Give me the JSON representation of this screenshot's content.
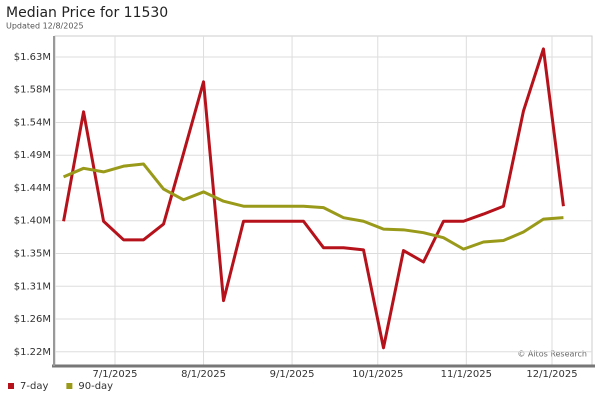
{
  "chart_data": {
    "type": "line",
    "title": "Median Price for 11530",
    "subtitle": "Updated 12/8/2025",
    "annotation": "© Altos Research",
    "x": [
      "2025-06-13",
      "2025-06-20",
      "2025-06-27",
      "2025-07-04",
      "2025-07-11",
      "2025-07-18",
      "2025-07-25",
      "2025-08-01",
      "2025-08-08",
      "2025-08-15",
      "2025-08-22",
      "2025-08-29",
      "2025-09-05",
      "2025-09-12",
      "2025-09-19",
      "2025-09-26",
      "2025-10-03",
      "2025-10-10",
      "2025-10-17",
      "2025-10-24",
      "2025-10-31",
      "2025-11-07",
      "2025-11-14",
      "2025-11-21",
      "2025-11-28",
      "2025-12-05"
    ],
    "series": [
      {
        "name": "7-day",
        "color": "#b5121b",
        "values": [
          1.398,
          1.551,
          1.398,
          1.372,
          1.372,
          1.394,
          1.493,
          1.593,
          1.287,
          1.398,
          1.398,
          1.398,
          1.398,
          1.361,
          1.361,
          1.358,
          1.221,
          1.357,
          1.341,
          1.398,
          1.398,
          1.408,
          1.419,
          1.552,
          1.639,
          1.419
        ]
      },
      {
        "name": "90-day",
        "color": "#9a9a1a",
        "values": [
          1.46,
          1.472,
          1.467,
          1.475,
          1.478,
          1.443,
          1.428,
          1.439,
          1.426,
          1.419,
          1.419,
          1.419,
          1.419,
          1.417,
          1.403,
          1.398,
          1.387,
          1.386,
          1.382,
          1.375,
          1.359,
          1.369,
          1.371,
          1.383,
          1.401,
          1.403
        ]
      }
    ],
    "xlim": [
      "2025-06-10",
      "2025-12-15"
    ],
    "xticks": [
      {
        "value": "2025-07-01",
        "label": "7/1/2025"
      },
      {
        "value": "2025-08-01",
        "label": "8/1/2025"
      },
      {
        "value": "2025-09-01",
        "label": "9/1/2025"
      },
      {
        "value": "2025-10-01",
        "label": "10/1/2025"
      },
      {
        "value": "2025-11-01",
        "label": "11/1/2025"
      },
      {
        "value": "2025-12-01",
        "label": "12/1/2025"
      }
    ],
    "ylim": [
      1.197,
      1.657
    ],
    "yticks": [
      {
        "value": 1.2155,
        "label": "$1.22M"
      },
      {
        "value": 1.2613,
        "label": "$1.26M"
      },
      {
        "value": 1.3071,
        "label": "$1.31M"
      },
      {
        "value": 1.3529,
        "label": "$1.35M"
      },
      {
        "value": 1.3987,
        "label": "$1.40M"
      },
      {
        "value": 1.4445,
        "label": "$1.44M"
      },
      {
        "value": 1.4903,
        "label": "$1.49M"
      },
      {
        "value": 1.5361,
        "label": "$1.54M"
      },
      {
        "value": 1.5819,
        "label": "$1.58M"
      },
      {
        "value": 1.6277,
        "label": "$1.63M"
      }
    ],
    "grid": true,
    "legend": "bottom-left"
  }
}
